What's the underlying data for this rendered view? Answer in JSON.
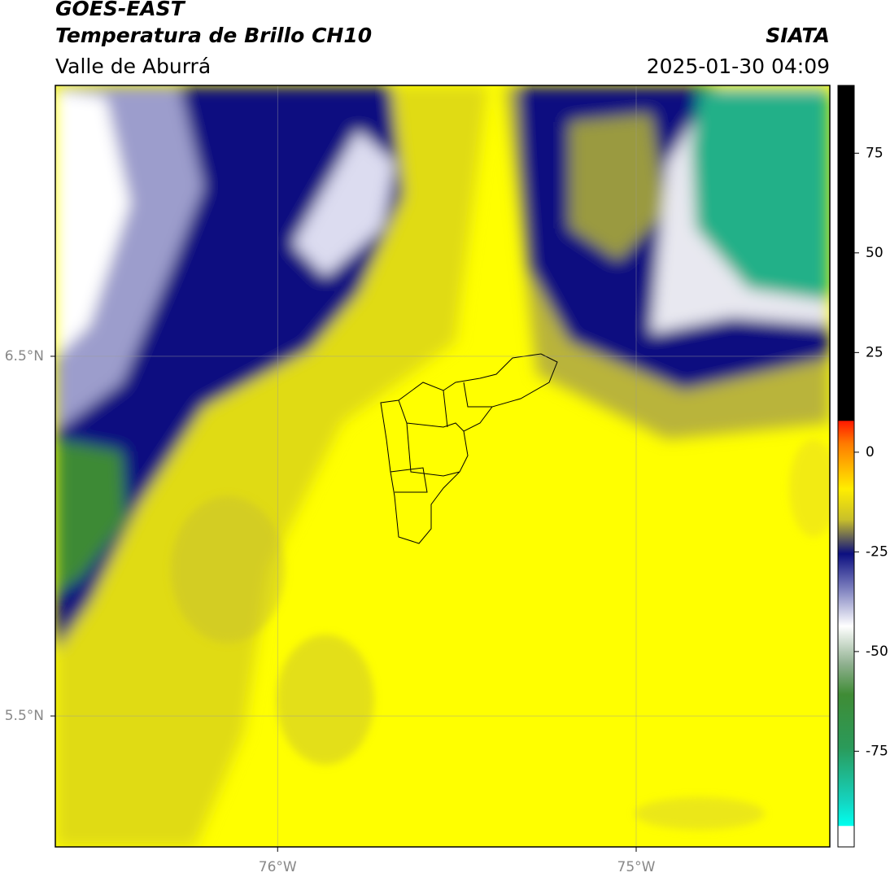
{
  "header": {
    "title": "GOES-EAST",
    "subtitle": "Temperatura de Brillo CH10",
    "region": "Valle de Aburrá",
    "source": "SIATA",
    "datetime": "2025-01-30 04:09"
  },
  "map": {
    "xlim": [
      -76.62,
      -74.46
    ],
    "ylim": [
      5.136,
      7.253
    ],
    "yticks": [
      {
        "value": 6.5,
        "label": "6.5°N"
      },
      {
        "value": 5.5,
        "label": "5.5°N"
      }
    ],
    "xticks": [
      {
        "value": -76,
        "label": "76°W"
      },
      {
        "value": -75,
        "label": "75°W"
      }
    ]
  },
  "colorbar": {
    "ylim": [
      -99,
      92
    ],
    "yticks": [
      75,
      50,
      25,
      0,
      -25,
      -50,
      -75
    ]
  }
}
